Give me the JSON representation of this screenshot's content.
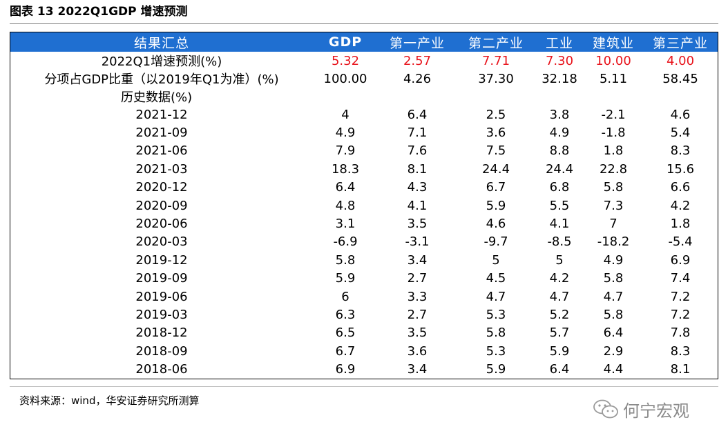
{
  "caption": "图表 13 2022Q1GDP 增速预测",
  "table": {
    "headers": [
      "结果汇总",
      "GDP",
      "第一产业",
      "第二产业",
      "工业",
      "建筑业",
      "第三产业"
    ],
    "forecast": {
      "label": "2022Q1增速预测(%)",
      "values": [
        "5.32",
        "2.57",
        "7.71",
        "7.30",
        "10.00",
        "4.00"
      ]
    },
    "share": {
      "label": "分项占GDP比重（以2019年Q1为准）(%)",
      "values": [
        "100.00",
        "4.26",
        "37.30",
        "32.18",
        "5.11",
        "58.45"
      ]
    },
    "history_label": "历史数据(%)",
    "history": [
      {
        "period": "2021-12",
        "values": [
          "4",
          "6.4",
          "2.5",
          "3.8",
          "-2.1",
          "4.6"
        ]
      },
      {
        "period": "2021-09",
        "values": [
          "4.9",
          "7.1",
          "3.6",
          "4.9",
          "-1.8",
          "5.4"
        ]
      },
      {
        "period": "2021-06",
        "values": [
          "7.9",
          "7.6",
          "7.5",
          "8.8",
          "1.8",
          "8.3"
        ]
      },
      {
        "period": "2021-03",
        "values": [
          "18.3",
          "8.1",
          "24.4",
          "24.4",
          "22.8",
          "15.6"
        ]
      },
      {
        "period": "2020-12",
        "values": [
          "6.4",
          "4.3",
          "6.7",
          "6.8",
          "5.8",
          "6.6"
        ]
      },
      {
        "period": "2020-09",
        "values": [
          "4.8",
          "4.1",
          "5.9",
          "5.5",
          "7.3",
          "4.2"
        ]
      },
      {
        "period": "2020-06",
        "values": [
          "3.1",
          "3.5",
          "4.6",
          "4.1",
          "7",
          "1.8"
        ]
      },
      {
        "period": "2020-03",
        "values": [
          "-6.9",
          "-3.1",
          "-9.7",
          "-8.5",
          "-18.2",
          "-5.4"
        ]
      },
      {
        "period": "2019-12",
        "values": [
          "5.8",
          "3.4",
          "5",
          "5",
          "4.9",
          "6.9"
        ]
      },
      {
        "period": "2019-09",
        "values": [
          "5.9",
          "2.7",
          "4.5",
          "4.2",
          "5.8",
          "7.4"
        ]
      },
      {
        "period": "2019-06",
        "values": [
          "6",
          "3.3",
          "4.7",
          "4.7",
          "4.7",
          "7.2"
        ]
      },
      {
        "period": "2019-03",
        "values": [
          "6.3",
          "2.7",
          "5.3",
          "5.2",
          "5.8",
          "7.2"
        ]
      },
      {
        "period": "2018-12",
        "values": [
          "6.5",
          "3.5",
          "5.8",
          "5.7",
          "6.4",
          "7.8"
        ]
      },
      {
        "period": "2018-09",
        "values": [
          "6.7",
          "3.6",
          "5.3",
          "5.9",
          "2.9",
          "8.3"
        ]
      },
      {
        "period": "2018-06",
        "values": [
          "6.9",
          "3.4",
          "5.9",
          "6.4",
          "4.4",
          "8.1"
        ]
      }
    ]
  },
  "source": "资料来源：wind，华安证券研究所测算",
  "watermark": "何宁宏观",
  "colors": {
    "header_bg": "#1f6fd1",
    "highlight": "#e8131b"
  }
}
